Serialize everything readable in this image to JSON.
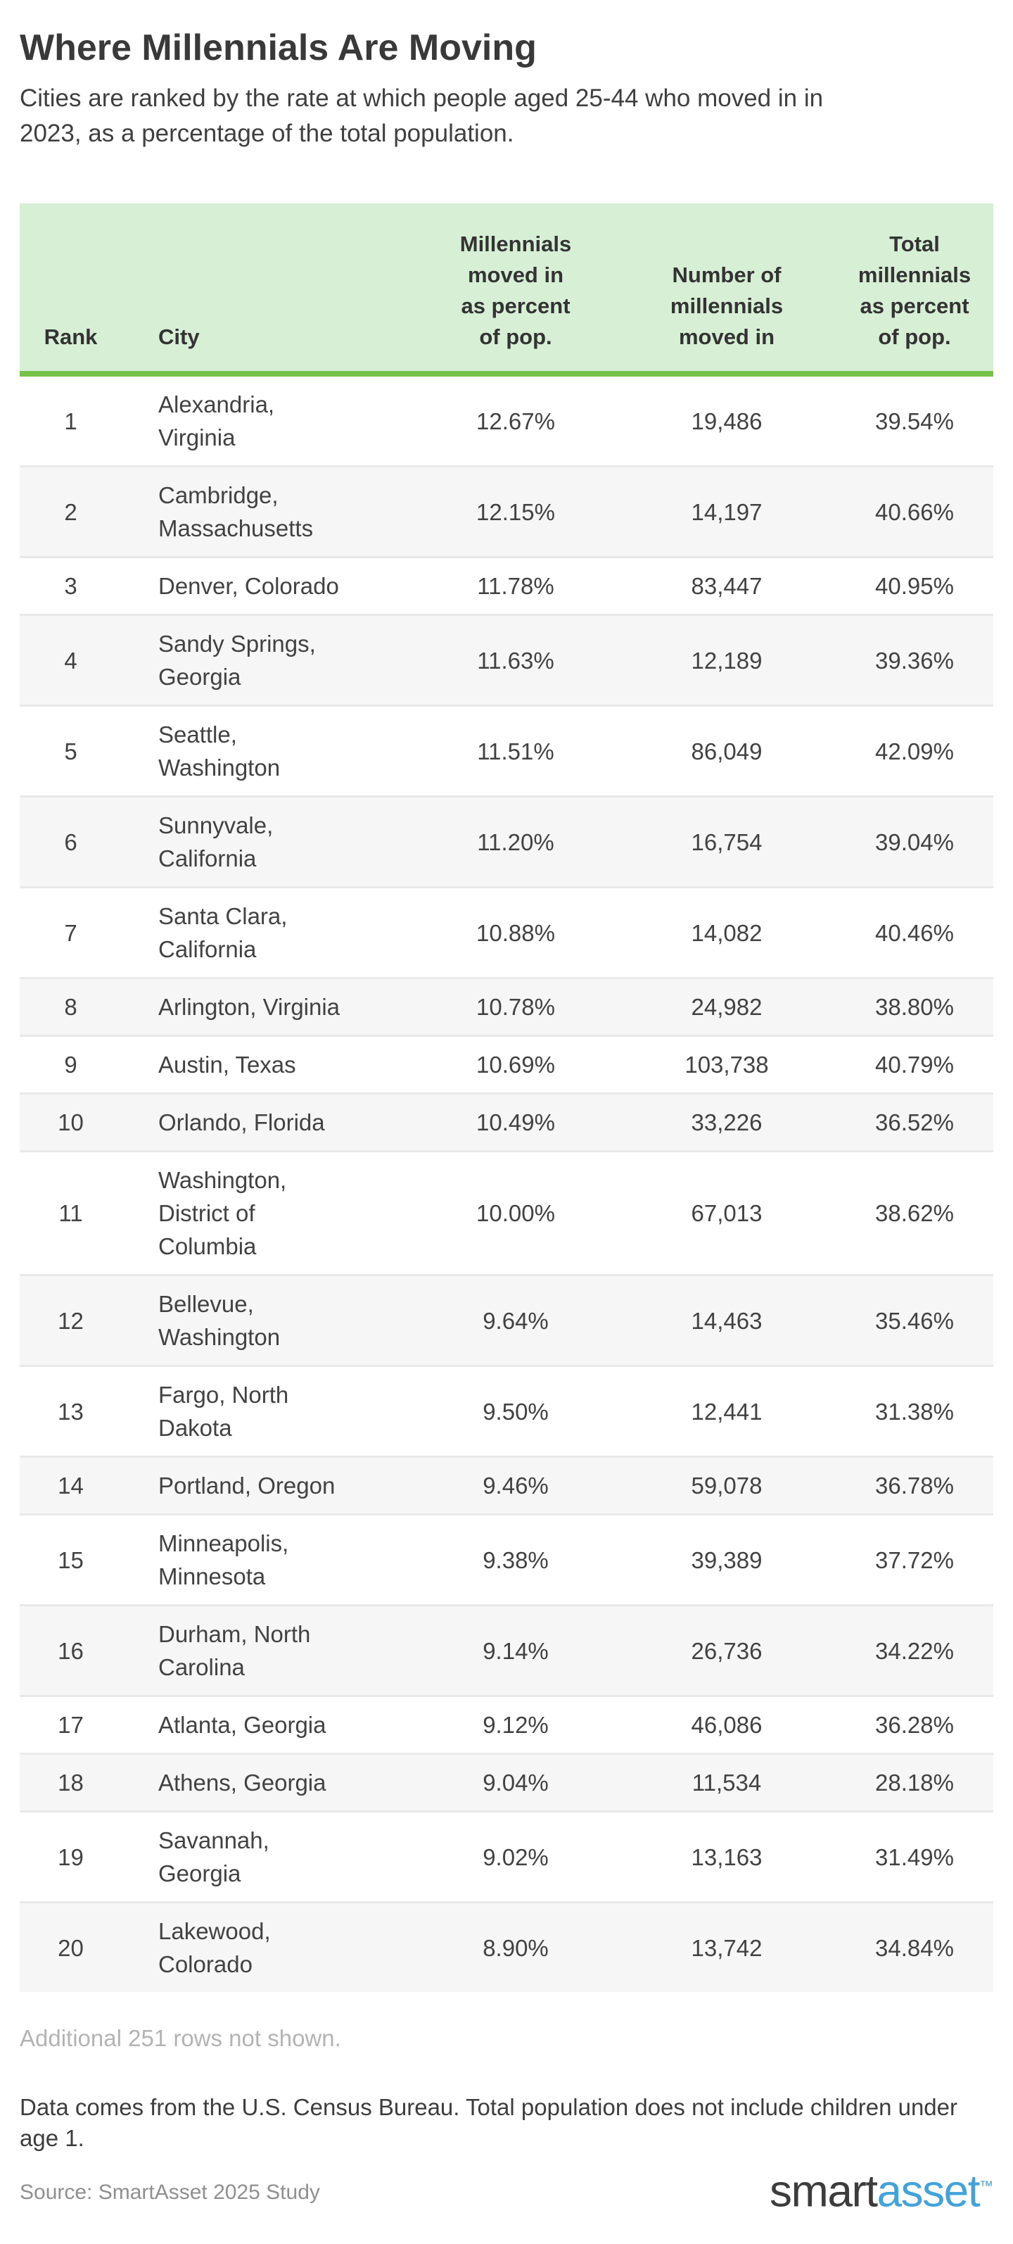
{
  "colors": {
    "header_bg": "#d7f0d5",
    "header_rule_green": "#76c24b",
    "alt_row_bg": "#f6f6f6",
    "row_border": "#e9e9e9",
    "body_text": "#424242",
    "title_text": "#393939",
    "muted_note": "#b3b3b3",
    "source_text": "#8f8f8f",
    "logo_dark": "#3c3c3c",
    "logo_blue": "#41a3da"
  },
  "chart_data": {
    "type": "table",
    "title": "Where Millennials Are Moving",
    "subtitle": "Cities are ranked by the rate at which people aged 25-44 who moved in in\n2023, as a percentage of the total population.",
    "columns": [
      "Rank",
      "City",
      "Millennials\nmoved in\nas percent\nof pop.",
      "Number of\nmillennials\nmoved in",
      "Total\nmillennials\nas percent\nof pop."
    ],
    "rows": [
      {
        "rank": "1",
        "city": "Alexandria,\nVirginia",
        "pct_moved_in": "12.67%",
        "num_moved_in": "19,486",
        "total_pct": "39.54%"
      },
      {
        "rank": "2",
        "city": "Cambridge,\nMassachusetts",
        "pct_moved_in": "12.15%",
        "num_moved_in": "14,197",
        "total_pct": "40.66%"
      },
      {
        "rank": "3",
        "city": "Denver, Colorado",
        "pct_moved_in": "11.78%",
        "num_moved_in": "83,447",
        "total_pct": "40.95%"
      },
      {
        "rank": "4",
        "city": "Sandy Springs,\nGeorgia",
        "pct_moved_in": "11.63%",
        "num_moved_in": "12,189",
        "total_pct": "39.36%"
      },
      {
        "rank": "5",
        "city": "Seattle,\nWashington",
        "pct_moved_in": "11.51%",
        "num_moved_in": "86,049",
        "total_pct": "42.09%"
      },
      {
        "rank": "6",
        "city": "Sunnyvale,\nCalifornia",
        "pct_moved_in": "11.20%",
        "num_moved_in": "16,754",
        "total_pct": "39.04%"
      },
      {
        "rank": "7",
        "city": "Santa Clara,\nCalifornia",
        "pct_moved_in": "10.88%",
        "num_moved_in": "14,082",
        "total_pct": "40.46%"
      },
      {
        "rank": "8",
        "city": "Arlington, Virginia",
        "pct_moved_in": "10.78%",
        "num_moved_in": "24,982",
        "total_pct": "38.80%"
      },
      {
        "rank": "9",
        "city": "Austin, Texas",
        "pct_moved_in": "10.69%",
        "num_moved_in": "103,738",
        "total_pct": "40.79%"
      },
      {
        "rank": "10",
        "city": "Orlando, Florida",
        "pct_moved_in": "10.49%",
        "num_moved_in": "33,226",
        "total_pct": "36.52%"
      },
      {
        "rank": "11",
        "city": "Washington,\nDistrict of\nColumbia",
        "pct_moved_in": "10.00%",
        "num_moved_in": "67,013",
        "total_pct": "38.62%"
      },
      {
        "rank": "12",
        "city": "Bellevue,\nWashington",
        "pct_moved_in": "9.64%",
        "num_moved_in": "14,463",
        "total_pct": "35.46%"
      },
      {
        "rank": "13",
        "city": "Fargo, North\nDakota",
        "pct_moved_in": "9.50%",
        "num_moved_in": "12,441",
        "total_pct": "31.38%"
      },
      {
        "rank": "14",
        "city": "Portland, Oregon",
        "pct_moved_in": "9.46%",
        "num_moved_in": "59,078",
        "total_pct": "36.78%"
      },
      {
        "rank": "15",
        "city": "Minneapolis,\nMinnesota",
        "pct_moved_in": "9.38%",
        "num_moved_in": "39,389",
        "total_pct": "37.72%"
      },
      {
        "rank": "16",
        "city": "Durham, North\nCarolina",
        "pct_moved_in": "9.14%",
        "num_moved_in": "26,736",
        "total_pct": "34.22%"
      },
      {
        "rank": "17",
        "city": "Atlanta, Georgia",
        "pct_moved_in": "9.12%",
        "num_moved_in": "46,086",
        "total_pct": "36.28%"
      },
      {
        "rank": "18",
        "city": "Athens, Georgia",
        "pct_moved_in": "9.04%",
        "num_moved_in": "11,534",
        "total_pct": "28.18%"
      },
      {
        "rank": "19",
        "city": "Savannah,\nGeorgia",
        "pct_moved_in": "9.02%",
        "num_moved_in": "13,163",
        "total_pct": "31.49%"
      },
      {
        "rank": "20",
        "city": "Lakewood,\nColorado",
        "pct_moved_in": "8.90%",
        "num_moved_in": "13,742",
        "total_pct": "34.84%"
      }
    ],
    "additional_rows_note": "Additional 251 rows not shown.",
    "data_note": "Data comes from the U.S. Census Bureau. Total population does not include children under\nage 1.",
    "source": "Source: SmartAsset 2025 Study",
    "logo": {
      "part1": "smart",
      "part2": "asset",
      "tm": "™"
    }
  }
}
